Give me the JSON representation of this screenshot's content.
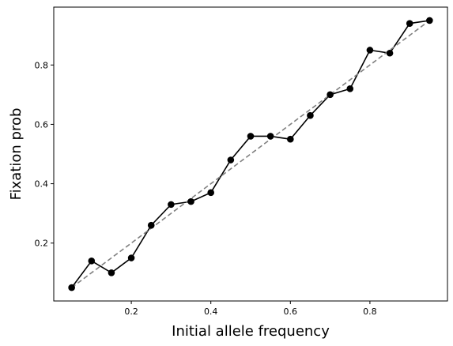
{
  "chart_data": {
    "type": "line",
    "title": "",
    "xlabel": "Initial allele frequency",
    "ylabel": "Fixation prob",
    "xlim": [
      0.005,
      0.995
    ],
    "ylim": [
      0.005,
      0.995
    ],
    "grid": false,
    "x_ticks": [
      "0.2",
      "0.4",
      "0.6",
      "0.8"
    ],
    "y_ticks": [
      "0.2",
      "0.4",
      "0.6",
      "0.8"
    ],
    "series": [
      {
        "style": "solid-with-markers",
        "color": "#000000",
        "x": [
          0.05,
          0.1,
          0.15,
          0.2,
          0.25,
          0.3,
          0.35,
          0.4,
          0.45,
          0.5,
          0.55,
          0.6,
          0.65,
          0.7,
          0.75,
          0.8,
          0.85,
          0.9,
          0.95
        ],
        "y": [
          0.05,
          0.14,
          0.1,
          0.15,
          0.26,
          0.33,
          0.34,
          0.37,
          0.48,
          0.56,
          0.56,
          0.55,
          0.63,
          0.7,
          0.72,
          0.85,
          0.84,
          0.94,
          0.95
        ]
      },
      {
        "style": "dashed",
        "color": "#808080",
        "x": [
          0.05,
          0.95
        ],
        "y": [
          0.05,
          0.95
        ]
      }
    ]
  }
}
